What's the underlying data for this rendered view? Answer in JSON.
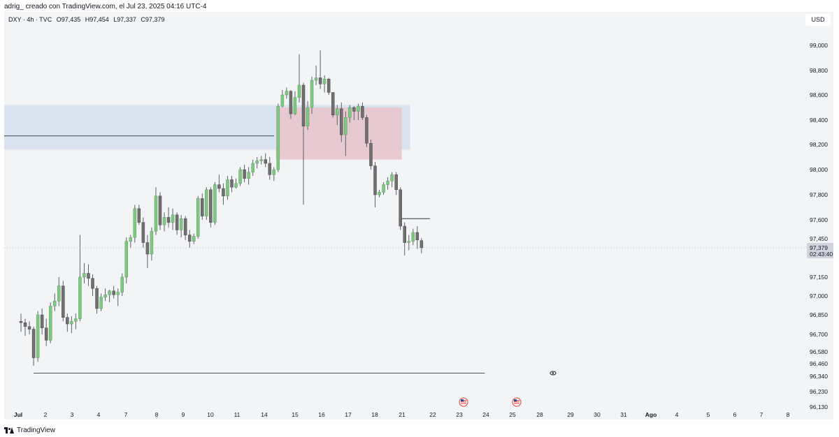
{
  "header": {
    "credit": "adrig_ creado con TradingView.com, el Jul 23, 2025 04:16 UTC-4"
  },
  "legend": {
    "symbol": "DXY · 4h · TVC",
    "open": "O97,435",
    "high": "H97,454",
    "low": "L97,337",
    "close": "C97,379"
  },
  "currency_label": "USD",
  "footer": {
    "brand": "TradingView"
  },
  "icons": {
    "eye": "eye-icon",
    "flag": "us-flag-icon",
    "logo": "tradingview-logo-icon"
  },
  "colors": {
    "up": "#81c784",
    "down": "#707070",
    "wick": "#5d606b",
    "blue_zone": "#d3e1ee",
    "red_zone": "#e8c5cd",
    "grid_bg": "#f3f4f6"
  },
  "chart_data": {
    "type": "candlestick",
    "symbol": "DXY",
    "timeframe": "4h",
    "currency": "USD",
    "ylim": [
      96.13,
      99.12
    ],
    "price_ticks": [
      {
        "label": "99,000",
        "value": 99.0
      },
      {
        "label": "98,800",
        "value": 98.8
      },
      {
        "label": "98,600",
        "value": 98.6
      },
      {
        "label": "98,400",
        "value": 98.4
      },
      {
        "label": "98,200",
        "value": 98.2
      },
      {
        "label": "98,000",
        "value": 98.0
      },
      {
        "label": "97,800",
        "value": 97.8
      },
      {
        "label": "97,600",
        "value": 97.6
      },
      {
        "label": "97,450",
        "value": 97.45
      },
      {
        "label": "97,150",
        "value": 97.15
      },
      {
        "label": "97,000",
        "value": 97.0
      },
      {
        "label": "96,850",
        "value": 96.85
      },
      {
        "label": "96,700",
        "value": 96.7
      },
      {
        "label": "96,580",
        "value": 96.58
      },
      {
        "label": "96,460",
        "value": 96.46
      },
      {
        "label": "96,340",
        "value": 96.34
      },
      {
        "label": "96,230",
        "value": 96.23
      },
      {
        "label": "96,130",
        "value": 96.13
      }
    ],
    "time_ticks": [
      "Jul",
      "2",
      "3",
      "4",
      "7",
      "8",
      "9",
      "10",
      "11",
      "14",
      "15",
      "16",
      "17",
      "18",
      "21",
      "22",
      "23",
      "24",
      "25",
      "28",
      "29",
      "30",
      "31",
      "Ago",
      "4",
      "5",
      "6",
      "7",
      "8"
    ],
    "current_price": {
      "label": "97,379",
      "value": 97.379,
      "countdown": "02:43:40"
    },
    "candles_ohlc": [
      [
        96.8,
        96.86,
        96.72,
        96.79
      ],
      [
        96.79,
        96.82,
        96.69,
        96.76
      ],
      [
        96.76,
        96.8,
        96.7,
        96.74
      ],
      [
        96.74,
        96.76,
        96.44,
        96.52
      ],
      [
        96.52,
        96.88,
        96.48,
        96.85
      ],
      [
        96.85,
        96.9,
        96.7,
        96.75
      ],
      [
        96.75,
        96.82,
        96.62,
        96.66
      ],
      [
        96.66,
        96.95,
        96.64,
        96.92
      ],
      [
        96.92,
        97.02,
        96.88,
        96.96
      ],
      [
        96.96,
        97.15,
        96.92,
        97.08
      ],
      [
        97.08,
        97.12,
        96.8,
        96.83
      ],
      [
        96.83,
        96.86,
        96.72,
        96.78
      ],
      [
        96.78,
        96.84,
        96.71,
        96.8
      ],
      [
        96.8,
        96.86,
        96.74,
        96.82
      ],
      [
        96.82,
        97.48,
        96.8,
        97.15
      ],
      [
        97.15,
        97.26,
        97.1,
        97.18
      ],
      [
        97.18,
        97.25,
        97.08,
        97.14
      ],
      [
        97.14,
        97.17,
        97.0,
        97.06
      ],
      [
        97.06,
        97.08,
        96.86,
        96.9
      ],
      [
        96.9,
        97.02,
        96.88,
        96.99
      ],
      [
        96.99,
        97.06,
        96.96,
        97.01
      ],
      [
        97.01,
        97.05,
        96.95,
        97.04
      ],
      [
        97.04,
        97.08,
        96.98,
        97.01
      ],
      [
        97.01,
        97.06,
        96.92,
        97.03
      ],
      [
        97.03,
        97.18,
        97.0,
        97.15
      ],
      [
        97.15,
        97.46,
        97.1,
        97.43
      ],
      [
        97.43,
        97.48,
        97.38,
        97.46
      ],
      [
        97.46,
        97.72,
        97.42,
        97.69
      ],
      [
        97.69,
        97.72,
        97.56,
        97.58
      ],
      [
        97.58,
        97.62,
        97.38,
        97.42
      ],
      [
        97.42,
        97.48,
        97.22,
        97.33
      ],
      [
        97.33,
        97.54,
        97.28,
        97.51
      ],
      [
        97.51,
        97.86,
        97.48,
        97.79
      ],
      [
        97.79,
        97.82,
        97.52,
        97.56
      ],
      [
        97.56,
        97.66,
        97.51,
        97.62
      ],
      [
        97.62,
        97.7,
        97.54,
        97.58
      ],
      [
        97.58,
        97.69,
        97.52,
        97.64
      ],
      [
        97.64,
        97.66,
        97.48,
        97.52
      ],
      [
        97.52,
        97.64,
        97.46,
        97.61
      ],
      [
        97.61,
        97.63,
        97.44,
        97.48
      ],
      [
        97.48,
        97.52,
        97.38,
        97.43
      ],
      [
        97.43,
        97.49,
        97.41,
        97.47
      ],
      [
        97.47,
        97.79,
        97.45,
        97.77
      ],
      [
        97.77,
        97.81,
        97.6,
        97.63
      ],
      [
        97.63,
        97.86,
        97.6,
        97.84
      ],
      [
        97.84,
        97.86,
        97.54,
        97.58
      ],
      [
        97.58,
        97.9,
        97.56,
        97.88
      ],
      [
        97.88,
        97.96,
        97.82,
        97.85
      ],
      [
        97.85,
        97.89,
        97.72,
        97.79
      ],
      [
        97.79,
        97.95,
        97.76,
        97.92
      ],
      [
        97.92,
        97.95,
        97.82,
        97.86
      ],
      [
        97.86,
        97.93,
        97.85,
        97.89
      ],
      [
        97.89,
        98.02,
        97.87,
        98.0
      ],
      [
        98.0,
        98.04,
        97.9,
        97.93
      ],
      [
        97.93,
        98.02,
        97.88,
        97.98
      ],
      [
        97.98,
        98.08,
        97.95,
        98.05
      ],
      [
        98.05,
        98.1,
        98.01,
        98.07
      ],
      [
        98.07,
        98.11,
        98.04,
        98.08
      ],
      [
        98.08,
        98.13,
        98.02,
        98.05
      ],
      [
        98.05,
        98.1,
        97.92,
        97.96
      ],
      [
        97.96,
        98.02,
        97.91,
        98.0
      ],
      [
        98.0,
        98.53,
        97.98,
        98.51
      ],
      [
        98.51,
        98.64,
        98.5,
        98.6
      ],
      [
        98.6,
        98.66,
        98.57,
        98.63
      ],
      [
        98.63,
        98.64,
        98.41,
        98.45
      ],
      [
        98.45,
        98.63,
        98.44,
        98.58
      ],
      [
        98.58,
        98.93,
        98.54,
        98.68
      ],
      [
        98.68,
        98.7,
        97.72,
        98.35
      ],
      [
        98.35,
        98.55,
        98.32,
        98.5
      ],
      [
        98.5,
        98.75,
        98.45,
        98.72
      ],
      [
        98.72,
        98.84,
        98.68,
        98.74
      ],
      [
        98.74,
        98.96,
        98.65,
        98.69
      ],
      [
        98.69,
        98.76,
        98.62,
        98.73
      ],
      [
        98.73,
        98.74,
        98.6,
        98.62
      ],
      [
        98.62,
        98.5,
        98.42,
        98.44
      ],
      [
        98.44,
        98.52,
        98.36,
        98.49
      ],
      [
        98.49,
        98.54,
        98.22,
        98.28
      ],
      [
        98.28,
        98.47,
        98.11,
        98.42
      ],
      [
        98.42,
        98.52,
        98.38,
        98.5
      ],
      [
        98.5,
        98.51,
        98.4,
        98.47
      ],
      [
        98.47,
        98.53,
        98.4,
        98.51
      ],
      [
        98.51,
        98.54,
        98.4,
        98.42
      ],
      [
        98.42,
        98.44,
        98.18,
        98.21
      ],
      [
        98.21,
        98.24,
        98.0,
        98.03
      ],
      [
        98.03,
        98.06,
        97.7,
        97.8
      ],
      [
        97.8,
        97.84,
        97.78,
        97.82
      ],
      [
        97.82,
        97.9,
        97.8,
        97.88
      ],
      [
        97.88,
        97.94,
        97.84,
        97.91
      ],
      [
        97.91,
        97.98,
        97.86,
        97.96
      ],
      [
        97.96,
        97.98,
        97.8,
        97.84
      ],
      [
        97.84,
        97.86,
        97.52,
        97.55
      ],
      [
        97.55,
        97.58,
        97.32,
        97.42
      ],
      [
        97.42,
        97.48,
        97.36,
        97.43
      ],
      [
        97.43,
        97.53,
        97.4,
        97.5
      ],
      [
        97.5,
        97.55,
        97.37,
        97.44
      ],
      [
        97.435,
        97.454,
        97.337,
        97.379
      ]
    ],
    "zones": [
      {
        "type": "rectangle",
        "color": "blue",
        "from_index": 0,
        "to_index": 92,
        "top": 98.52,
        "bottom": 98.16
      },
      {
        "type": "rectangle",
        "color": "red",
        "from_index": 61,
        "to_index": 90,
        "top": 98.5,
        "bottom": 98.08
      }
    ],
    "lines": [
      {
        "type": "horizontal",
        "value": 98.27,
        "from_index": 0,
        "to_index": 60
      },
      {
        "type": "horizontal",
        "value": 96.37,
        "from_index": 3,
        "to_index": 110
      },
      {
        "type": "horizontal",
        "value": 97.61,
        "from_index": 90,
        "to_index": 97
      }
    ],
    "event_markers": [
      {
        "icon": "us-flag-icon",
        "index": 94
      },
      {
        "icon": "us-flag-icon",
        "index": 105
      }
    ],
    "grid": false
  }
}
